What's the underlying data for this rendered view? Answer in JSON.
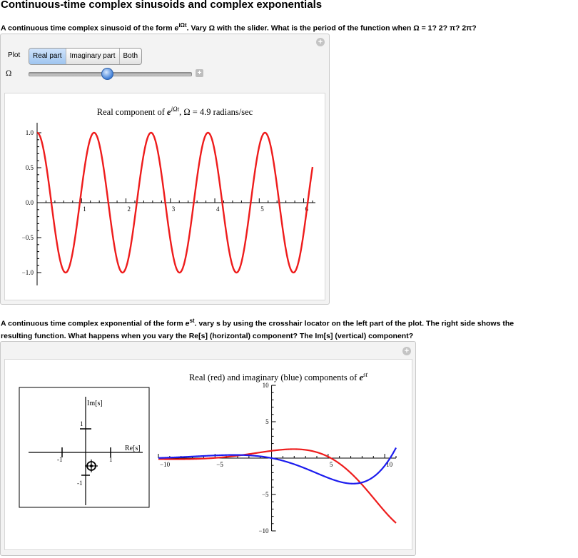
{
  "page": {
    "title": "Continuous-time complex sinusoids and complex exponentials"
  },
  "section1": {
    "prompt_pre": "A continuous time complex sinusoid of the form ",
    "prompt_base": "e",
    "prompt_exp": "iΩt",
    "prompt_post": ". Vary Ω with the slider.  What is the period of the function when Ω = 1? 2? π? 2π?",
    "plot_control_label": "Plot",
    "plot_options": [
      "Real part",
      "Imaginary part",
      "Both"
    ],
    "plot_selected": "Real part",
    "slider_label": "Ω",
    "omega_value": 4.9,
    "omega_slider_fraction": 0.49,
    "chart_title_pre": "Real component of ",
    "chart_title_base": "e",
    "chart_title_exp": "iΩt",
    "chart_title_post": ", Ω = 4.9 radians/sec"
  },
  "section2": {
    "prompt_line1_pre": "A continuous time complex exponential of the form ",
    "prompt_line1_base": "e",
    "prompt_line1_exp": "st",
    "prompt_line1_post": ".  vary s by using the crosshair locator on the left part of the plot.  The right side shows the",
    "prompt_line2": "resulting function.  What happens when you vary the Re[s] (horizontal) component? The Im[s] (vertical) component?",
    "splane": {
      "ylabel": "Im[s]",
      "xlabel": "Re[s]",
      "ticks": [
        "1",
        "-1",
        "-1",
        "1"
      ],
      "locator": {
        "re": 0.2,
        "im": -0.3
      }
    },
    "chart_title_pre": "Real (red) and imaginary (blue) components of ",
    "chart_title_base": "e",
    "chart_title_exp": "st"
  },
  "chart_data": [
    {
      "type": "line",
      "title": "Real component of e^{iΩt}, Ω = 4.9 radians/sec",
      "series": [
        {
          "color": "#ee1c1c",
          "function": "cos(4.9 t)"
        }
      ],
      "xlim": [
        0,
        6.2
      ],
      "ylim": [
        -1.1,
        1.1
      ],
      "x_ticks": [
        1,
        2,
        3,
        4,
        5,
        6
      ],
      "y_ticks": [
        1.0,
        0.5,
        0.0,
        -0.5,
        -1.0
      ],
      "x_tick_labels": [
        "1",
        "2",
        "3",
        "4",
        "5",
        "6"
      ],
      "y_tick_labels": [
        "1.0",
        "0.5",
        "0.0",
        "−0.5",
        "−1.0"
      ]
    },
    {
      "type": "line",
      "title": "Real (red) and imaginary (blue) components of e^{st}",
      "series": [
        {
          "color": "#ee1c1c",
          "function": "e^(0.2 t) cos(0.3 t)"
        },
        {
          "color": "#1c1cee",
          "function": "-e^(0.2 t) sin(0.3 t)"
        }
      ],
      "xlim": [
        -10,
        11
      ],
      "ylim": [
        -10,
        10
      ],
      "x_ticks": [
        -10,
        -5,
        5,
        10
      ],
      "y_ticks": [
        10,
        5,
        -5,
        -10
      ],
      "x_tick_labels": [
        "−10",
        "−5",
        "5",
        "10"
      ],
      "y_tick_labels": [
        "10",
        "5",
        "−5",
        "−10"
      ]
    }
  ],
  "colors": {
    "real": "#ee1c1c",
    "imag": "#1c1cee",
    "accent": "#3f7ed6"
  },
  "icons": [
    "add-circle-icon",
    "slider-plus-icon",
    "crosshair-locator-icon"
  ]
}
